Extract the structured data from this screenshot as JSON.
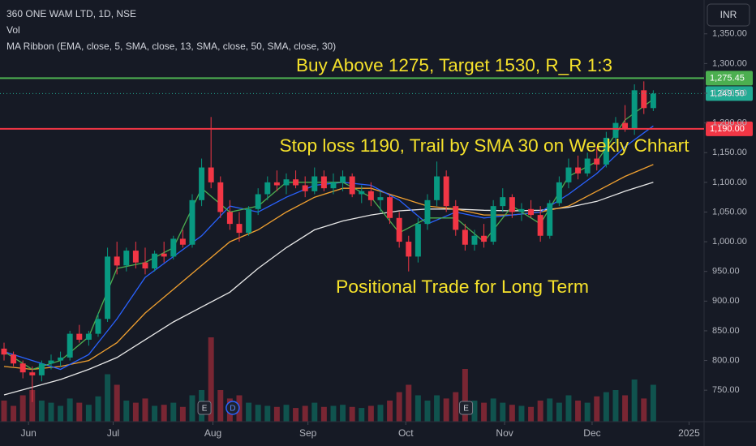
{
  "chart_data": {
    "type": "candlestick",
    "title": "360 ONE WAM LTD, 1D, NSE",
    "volume_title": "Vol",
    "indicator_title": "MA Ribbon (EMA, close, 5, SMA, close, 13, SMA, close, 50, SMA, close, 30)",
    "currency": "INR",
    "up_color": "#089981",
    "down_color": "#f23645",
    "x": [
      0,
      1,
      2,
      3,
      4,
      5,
      6,
      7,
      8,
      9,
      10,
      11,
      12,
      13,
      14,
      15,
      16,
      17,
      18,
      19,
      20,
      21,
      22,
      23,
      24,
      25,
      26,
      27,
      28,
      29,
      30,
      31,
      32,
      33,
      34,
      35,
      36,
      37,
      38,
      39,
      40,
      41,
      42,
      43,
      44,
      45,
      46,
      47,
      48,
      49,
      50,
      51,
      52,
      53,
      54,
      55,
      56,
      57,
      58,
      59,
      60,
      61,
      62,
      63,
      64,
      65,
      66,
      67,
      68,
      69
    ],
    "open": [
      820,
      810,
      795,
      780,
      775,
      795,
      800,
      805,
      845,
      835,
      845,
      870,
      975,
      960,
      985,
      965,
      955,
      980,
      975,
      1005,
      995,
      1070,
      1125,
      1100,
      1050,
      1030,
      1015,
      1055,
      1080,
      1100,
      1095,
      1105,
      1095,
      1085,
      1110,
      1090,
      1100,
      1110,
      1080,
      1085,
      1070,
      1075,
      1040,
      1000,
      975,
      1030,
      1070,
      1110,
      1060,
      1020,
      995,
      1010,
      1000,
      1060,
      1075,
      1050,
      1055,
      1045,
      1010,
      1065,
      1100,
      1125,
      1115,
      1140,
      1130,
      1175,
      1200,
      1190,
      1255,
      1225
    ],
    "high": [
      830,
      815,
      800,
      790,
      800,
      810,
      815,
      850,
      860,
      850,
      880,
      990,
      1000,
      990,
      1000,
      990,
      985,
      1000,
      1010,
      1020,
      1080,
      1140,
      1210,
      1110,
      1070,
      1050,
      1060,
      1090,
      1110,
      1120,
      1115,
      1120,
      1110,
      1125,
      1120,
      1115,
      1120,
      1115,
      1095,
      1100,
      1085,
      1080,
      1050,
      1010,
      1040,
      1080,
      1135,
      1120,
      1070,
      1030,
      1020,
      1030,
      1070,
      1090,
      1080,
      1065,
      1070,
      1060,
      1070,
      1110,
      1140,
      1145,
      1150,
      1160,
      1185,
      1210,
      1230,
      1265,
      1270,
      1255
    ],
    "low": [
      800,
      790,
      770,
      730,
      765,
      785,
      790,
      800,
      830,
      825,
      840,
      865,
      945,
      950,
      955,
      945,
      950,
      965,
      970,
      990,
      990,
      1060,
      1090,
      1040,
      1020,
      1000,
      1010,
      1045,
      1070,
      1085,
      1080,
      1090,
      1075,
      1080,
      1085,
      1080,
      1085,
      1075,
      1065,
      1060,
      1050,
      1030,
      990,
      950,
      965,
      1020,
      1060,
      1050,
      1010,
      985,
      985,
      990,
      995,
      1050,
      1040,
      1035,
      1040,
      1000,
      1005,
      1060,
      1090,
      1105,
      1110,
      1120,
      1125,
      1165,
      1185,
      1180,
      1215,
      1220
    ],
    "close": [
      810,
      795,
      780,
      775,
      795,
      800,
      805,
      845,
      835,
      845,
      870,
      975,
      960,
      985,
      965,
      955,
      980,
      975,
      1005,
      995,
      1070,
      1125,
      1100,
      1050,
      1030,
      1015,
      1055,
      1080,
      1100,
      1095,
      1105,
      1095,
      1085,
      1110,
      1090,
      1100,
      1110,
      1080,
      1085,
      1070,
      1075,
      1040,
      1000,
      975,
      1030,
      1070,
      1110,
      1060,
      1020,
      995,
      1010,
      1000,
      1060,
      1075,
      1050,
      1055,
      1045,
      1010,
      1065,
      1100,
      1125,
      1115,
      1140,
      1130,
      1175,
      1200,
      1190,
      1255,
      1225,
      1249.5
    ],
    "volume": [
      2.0,
      1.5,
      2.5,
      3.0,
      2.0,
      1.8,
      1.5,
      2.2,
      1.8,
      1.6,
      2.4,
      4.5,
      3.5,
      2.0,
      1.8,
      2.2,
      1.5,
      1.6,
      1.8,
      1.4,
      2.5,
      3.0,
      8.0,
      3.0,
      2.2,
      2.5,
      1.8,
      1.6,
      1.5,
      1.4,
      1.6,
      1.3,
      1.5,
      1.8,
      1.4,
      1.5,
      1.6,
      1.4,
      1.3,
      1.5,
      1.6,
      2.0,
      2.8,
      3.5,
      2.5,
      2.0,
      2.5,
      2.2,
      2.8,
      5.0,
      2.0,
      1.8,
      2.2,
      1.8,
      1.6,
      1.5,
      1.4,
      2.0,
      2.2,
      1.8,
      2.5,
      2.0,
      1.8,
      2.4,
      2.8,
      3.0,
      2.5,
      4.0,
      2.2,
      3.5
    ],
    "volume_ylim": [
      0,
      40
    ],
    "moving_averages": [
      {
        "color": "#e8e8e8",
        "x": [
          0,
          3,
          6,
          9,
          12,
          15,
          18,
          21,
          24,
          27,
          30,
          33,
          36,
          39,
          42,
          45,
          48,
          51,
          54,
          57,
          60,
          63,
          66,
          69
        ],
        "values": [
          742,
          755,
          768,
          785,
          805,
          835,
          865,
          890,
          915,
          955,
          990,
          1020,
          1035,
          1045,
          1052,
          1055,
          1055,
          1053,
          1052,
          1053,
          1058,
          1068,
          1085,
          1100
        ]
      },
      {
        "color": "#f0a030",
        "x": [
          0,
          3,
          6,
          9,
          12,
          15,
          18,
          21,
          24,
          27,
          30,
          33,
          36,
          39,
          42,
          45,
          48,
          51,
          54,
          57,
          60,
          63,
          66,
          69
        ],
        "values": [
          790,
          785,
          790,
          800,
          830,
          880,
          920,
          960,
          1000,
          1020,
          1050,
          1075,
          1090,
          1090,
          1075,
          1060,
          1055,
          1045,
          1045,
          1050,
          1060,
          1085,
          1110,
          1130
        ]
      },
      {
        "color": "#2962ff",
        "x": [
          0,
          3,
          6,
          9,
          12,
          15,
          18,
          21,
          24,
          27,
          30,
          33,
          36,
          39,
          42,
          45,
          48,
          51,
          54,
          57,
          60,
          63,
          66,
          69
        ],
        "values": [
          815,
          800,
          785,
          810,
          870,
          940,
          975,
          1010,
          1060,
          1050,
          1075,
          1095,
          1100,
          1095,
          1070,
          1030,
          1050,
          1040,
          1045,
          1050,
          1080,
          1115,
          1160,
          1195
        ]
      },
      {
        "color": "#4caf50",
        "x": [
          0,
          3,
          6,
          9,
          12,
          15,
          18,
          21,
          24,
          27,
          30,
          33,
          36,
          39,
          42,
          45,
          48,
          51,
          54,
          57,
          60,
          63,
          66,
          69
        ],
        "values": [
          815,
          785,
          800,
          840,
          955,
          965,
          990,
          1090,
          1050,
          1060,
          1100,
          1100,
          1100,
          1075,
          1015,
          1040,
          1040,
          1000,
          1060,
          1030,
          1110,
          1135,
          1205,
          1240
        ]
      }
    ],
    "levels": [
      {
        "value": 1275.45,
        "label": "1,275.45",
        "color": "#4caf50",
        "dashed": false
      },
      {
        "value": 1249.5,
        "label": "1,249.50",
        "color": "#22ab94",
        "dashed": true
      },
      {
        "value": 1190,
        "label": "1,190.00",
        "color": "#f23645",
        "dashed": false
      }
    ],
    "annotations": [
      "Buy Above 1275, Target 1530, R_R 1:3",
      "Stop loss 1190, Trail by SMA 30 on Weekly Chhart",
      "Positional Trade for Long Term"
    ],
    "events": [
      {
        "label": "E",
        "x": 21.3
      },
      {
        "label": "D",
        "x": 24.3
      },
      {
        "label": "E",
        "x": 49.1
      }
    ],
    "xlim": [
      -0.43,
      74.4
    ],
    "xticks": [
      {
        "value": 2.6,
        "label": "Jun"
      },
      {
        "value": 11.6,
        "label": "Jul"
      },
      {
        "value": 22.2,
        "label": "Aug"
      },
      {
        "value": 32.3,
        "label": "Sep"
      },
      {
        "value": 42.7,
        "label": "Oct"
      },
      {
        "value": 53.2,
        "label": "Nov"
      },
      {
        "value": 62.5,
        "label": "Dec"
      },
      {
        "value": 72.8,
        "label": "2025"
      }
    ],
    "ylim": [
      697,
      1407
    ],
    "yticks": [
      {
        "value": 750,
        "label": "750.00"
      },
      {
        "value": 800,
        "label": "800.00"
      },
      {
        "value": 850,
        "label": "850.00"
      },
      {
        "value": 900,
        "label": "900.00"
      },
      {
        "value": 950,
        "label": "950.00"
      },
      {
        "value": 1000,
        "label": "1,000.00"
      },
      {
        "value": 1050,
        "label": "1,050.00"
      },
      {
        "value": 1100,
        "label": "1,100.00"
      },
      {
        "value": 1150,
        "label": "1,150.00"
      },
      {
        "value": 1200,
        "label": "1,200.00"
      },
      {
        "value": 1250,
        "label": "1,250.00"
      },
      {
        "value": 1300,
        "label": "1,300.00"
      },
      {
        "value": 1350,
        "label": "1,350.00"
      }
    ]
  }
}
